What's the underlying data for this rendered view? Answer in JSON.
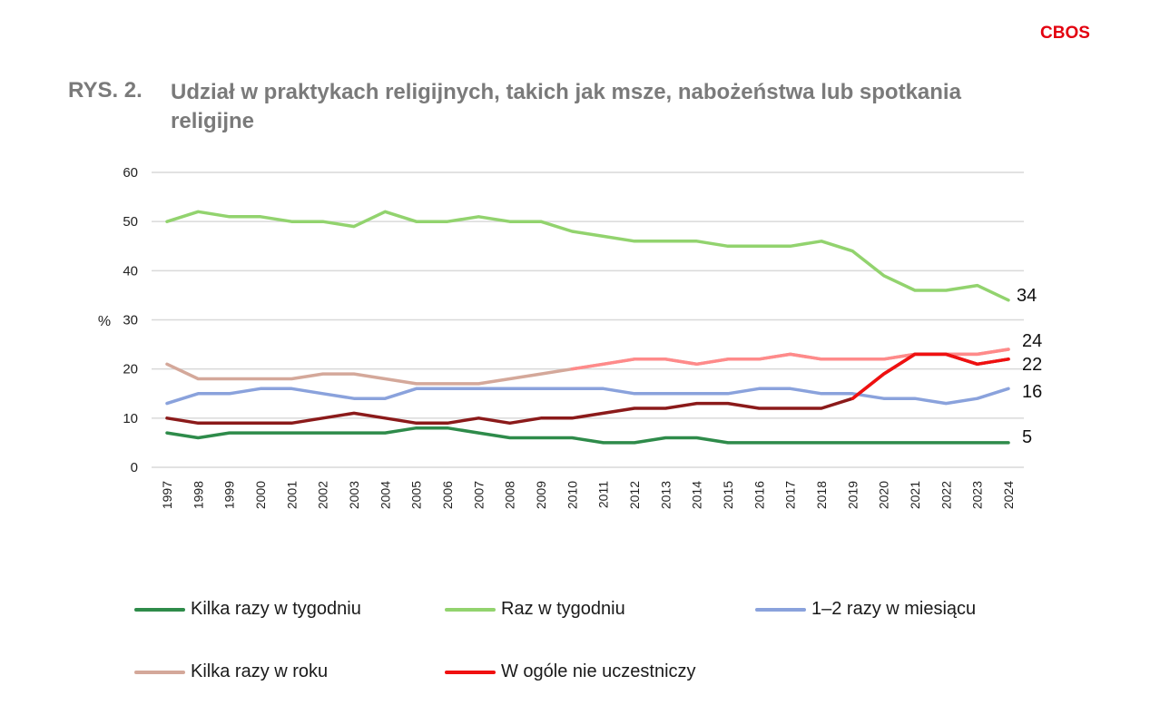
{
  "brand": {
    "name": "CBOS",
    "color": "#e3000f"
  },
  "figure": {
    "label": "RYS. 2.",
    "title": "Udział w praktykach religijnych, takich jak msze, nabożeństwa lub spotkania religijne"
  },
  "chart_data": {
    "type": "line",
    "ylabel": "%",
    "ylim": [
      0,
      60
    ],
    "yticks": [
      0,
      10,
      20,
      30,
      40,
      50,
      60
    ],
    "grid": true,
    "legend_position": "bottom",
    "x": [
      "1997",
      "1998",
      "1999",
      "2000",
      "2001",
      "2002",
      "2003",
      "2004",
      "2005",
      "2006",
      "2007",
      "2008",
      "2009",
      "2010",
      "2011",
      "2012",
      "2013",
      "2014",
      "2015",
      "2016",
      "2017",
      "2018",
      "2019",
      "2020",
      "2021",
      "2022",
      "2023",
      "2024"
    ],
    "series": [
      {
        "name": "Kilka razy w tygodniu",
        "color": "#2e8b4a",
        "values": [
          7,
          6,
          7,
          7,
          7,
          7,
          7,
          7,
          8,
          8,
          7,
          6,
          6,
          6,
          5,
          5,
          6,
          6,
          5,
          5,
          5,
          5,
          5,
          5,
          5,
          5,
          5,
          5
        ],
        "end_label": "5"
      },
      {
        "name": "Raz w tygodniu",
        "color": "#92d36e",
        "values": [
          50,
          52,
          51,
          51,
          50,
          50,
          49,
          52,
          50,
          50,
          51,
          50,
          50,
          48,
          47,
          46,
          46,
          46,
          45,
          45,
          45,
          46,
          44,
          39,
          36,
          36,
          37,
          34
        ],
        "end_label": "34"
      },
      {
        "name": "1–2 razy w miesiącu",
        "color": "#8aa2dc",
        "values": [
          13,
          15,
          15,
          16,
          16,
          15,
          14,
          14,
          16,
          16,
          16,
          16,
          16,
          16,
          16,
          15,
          15,
          15,
          15,
          16,
          16,
          15,
          15,
          14,
          14,
          13,
          14,
          16
        ],
        "end_label": "16"
      },
      {
        "name": "Kilka razy w roku",
        "color": "#d4a89a",
        "recent_color": "#ff8a8a",
        "values": [
          21,
          18,
          18,
          18,
          18,
          19,
          19,
          18,
          17,
          17,
          17,
          18,
          19,
          20,
          21,
          22,
          22,
          21,
          22,
          22,
          23,
          22,
          22,
          22,
          23,
          23,
          23,
          24
        ],
        "end_label": "24"
      },
      {
        "name": "W ogóle nie uczestniczy",
        "color": "#8b1a1a",
        "recent_color": "#f01010",
        "values": [
          10,
          9,
          9,
          9,
          9,
          10,
          11,
          10,
          9,
          9,
          10,
          9,
          10,
          10,
          11,
          12,
          12,
          13,
          13,
          12,
          12,
          12,
          14,
          19,
          23,
          23,
          21,
          22
        ],
        "end_label": "22"
      }
    ]
  }
}
